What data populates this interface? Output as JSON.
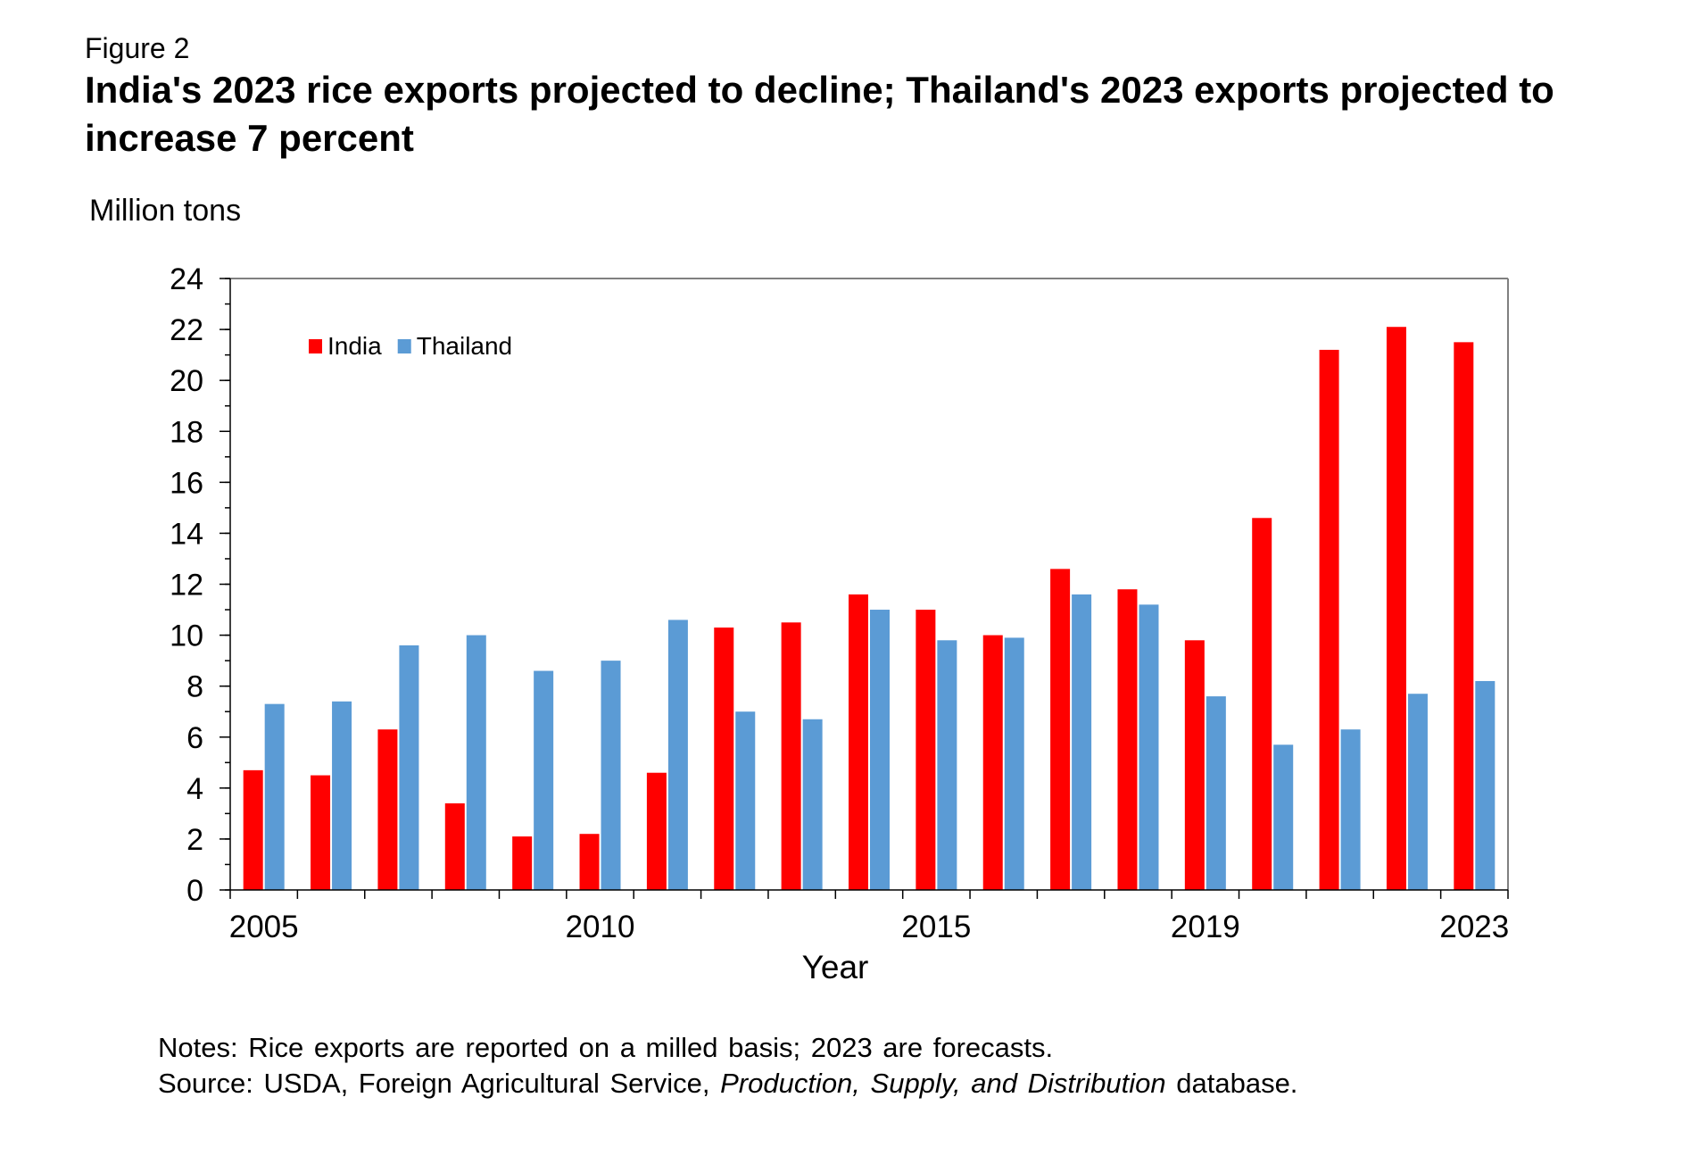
{
  "figure_label": "Figure 2",
  "title": "India's 2023 rice exports projected to decline; Thailand's 2023 exports projected to increase 7 percent",
  "notes": {
    "line1": "Notes: Rice exports are reported on a milled basis; 2023 are forecasts.",
    "source_prefix": "Source: USDA, Foreign Agricultural Service, ",
    "source_italic": "Production, Supply, and Distribution",
    "source_suffix": " database."
  },
  "chart_data": {
    "type": "bar",
    "ylabel": "Million tons",
    "xlabel": "Year",
    "ylim": [
      0,
      24
    ],
    "y_ticks": [
      0,
      2,
      4,
      6,
      8,
      10,
      12,
      14,
      16,
      18,
      20,
      22,
      24
    ],
    "y_minor_step": 1,
    "grid": false,
    "legend_position": "top-left",
    "categories": [
      "2005",
      "2006",
      "2007",
      "2008",
      "2009",
      "2010",
      "2011",
      "2012",
      "2013",
      "2014",
      "2015",
      "2016",
      "2017",
      "2018",
      "2019",
      "2020",
      "2021",
      "2022",
      "2023"
    ],
    "x_tick_labels": [
      {
        "category": "2005",
        "label": "2005"
      },
      {
        "category": "2010",
        "label": "2010"
      },
      {
        "category": "2015",
        "label": "2015"
      },
      {
        "category": "2019",
        "label": "2019"
      },
      {
        "category": "2023",
        "label": "2023"
      }
    ],
    "series": [
      {
        "name": "India",
        "color": "#ff0000",
        "values": [
          4.7,
          4.5,
          6.3,
          3.4,
          2.1,
          2.2,
          4.6,
          10.3,
          10.5,
          11.6,
          11.0,
          10.0,
          12.6,
          11.8,
          9.8,
          14.6,
          21.2,
          22.1,
          21.5
        ]
      },
      {
        "name": "Thailand",
        "color": "#5b9bd5",
        "values": [
          7.3,
          7.4,
          9.6,
          10.0,
          8.6,
          9.0,
          10.6,
          7.0,
          6.7,
          11.0,
          9.8,
          9.9,
          11.6,
          11.2,
          7.6,
          5.7,
          6.3,
          7.7,
          8.2
        ]
      }
    ]
  }
}
